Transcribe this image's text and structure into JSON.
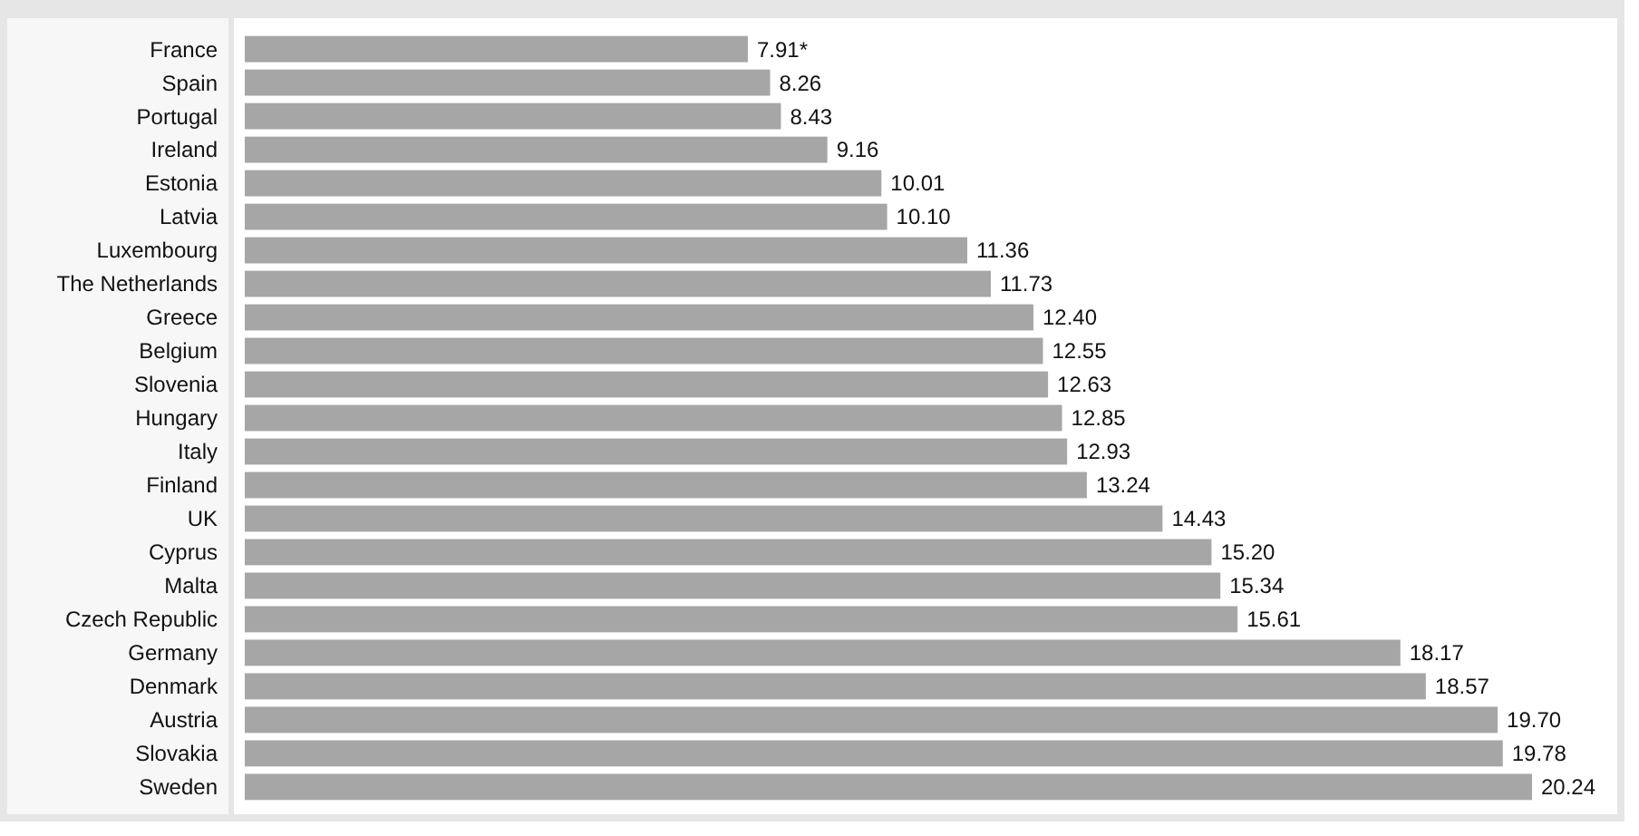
{
  "chart_data": {
    "type": "bar",
    "orientation": "horizontal",
    "color": "#a6a6a6",
    "categories": [
      "France",
      "Spain",
      "Portugal",
      "Ireland",
      "Estonia",
      "Latvia",
      "Luxembourg",
      "The Netherlands",
      "Greece",
      "Belgium",
      "Slovenia",
      "Hungary",
      "Italy",
      "Finland",
      "UK",
      "Cyprus",
      "Malta",
      "Czech Republic",
      "Germany",
      "Denmark",
      "Austria",
      "Slovakia",
      "Sweden"
    ],
    "values": [
      7.91,
      8.26,
      8.43,
      9.16,
      10.01,
      10.1,
      11.36,
      11.73,
      12.4,
      12.55,
      12.63,
      12.85,
      12.93,
      13.24,
      14.43,
      15.2,
      15.34,
      15.61,
      18.17,
      18.57,
      19.7,
      19.78,
      20.24
    ],
    "value_labels": [
      "7.91*",
      "8.26",
      "8.43",
      "9.16",
      "10.01",
      "10.10",
      "11.36",
      "11.73",
      "12.40",
      "12.55",
      "12.63",
      "12.85",
      "12.93",
      "13.24",
      "14.43",
      "15.20",
      "15.34",
      "15.61",
      "18.17",
      "18.57",
      "19.70",
      "19.78",
      "20.24"
    ]
  }
}
